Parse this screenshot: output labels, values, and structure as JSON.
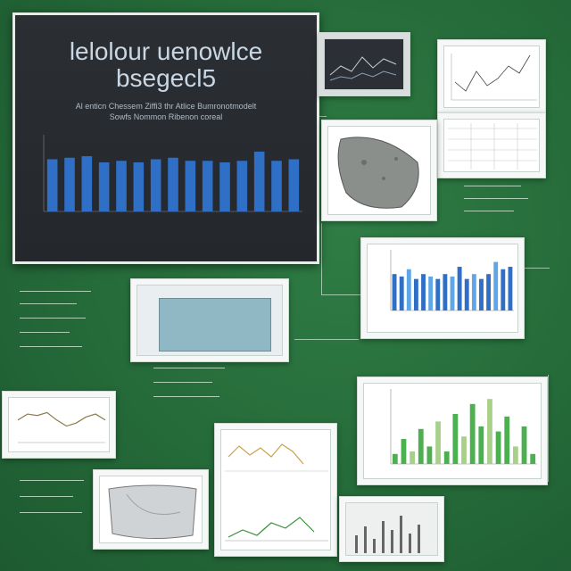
{
  "main_board": {
    "title": "lelolour uenowlce",
    "title_line2": "bsegecl5",
    "subtitle": "Al enticn Chessem Ziffi3 thr Atlice Bumronotmodelt",
    "subtitle_line2": "Sowfs Nommon Ribenon coreal"
  },
  "accent_colors": {
    "background": "#256a39",
    "board": "#24282c",
    "bar_blue": "#2f6fc6",
    "bar_light_blue": "#5fa6e6",
    "bar_green": "#4caf50"
  },
  "chart_data": [
    {
      "type": "bar",
      "values": [
        68,
        70,
        72,
        64,
        66,
        64,
        68,
        70,
        66,
        66,
        64,
        66,
        78,
        66,
        68
      ],
      "ylim": [
        0,
        100
      ]
    },
    {
      "type": "bar",
      "values": [
        30,
        28,
        34,
        26,
        30,
        28,
        26,
        30,
        28,
        36,
        26,
        30,
        26,
        30,
        40,
        34,
        36
      ],
      "ylim": [
        0,
        50
      ]
    },
    {
      "type": "bar",
      "values": [
        8,
        20,
        10,
        28,
        14,
        34,
        10,
        40,
        22,
        48,
        30,
        52,
        26,
        38,
        14,
        30,
        8
      ],
      "ylim": [
        0,
        60
      ]
    },
    {
      "type": "line",
      "values": [
        30,
        38,
        36,
        40,
        30,
        22,
        26,
        34,
        38,
        30
      ]
    }
  ]
}
